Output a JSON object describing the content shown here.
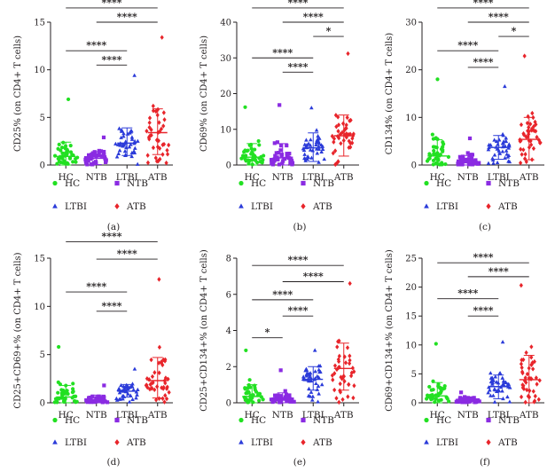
{
  "figure": {
    "panel_count": 6
  },
  "legend": [
    {
      "key": "HC",
      "label": "HC",
      "marker": "circle",
      "color": "#22e022"
    },
    {
      "key": "NTB",
      "label": "NTB",
      "marker": "square",
      "color": "#8a2be2"
    },
    {
      "key": "LTBI",
      "label": "LTBI",
      "marker": "triangle",
      "color": "#2b3bd9"
    },
    {
      "key": "ATB",
      "label": "ATB",
      "marker": "diamond",
      "color": "#e8252b"
    }
  ],
  "chart_data": [
    {
      "type": "scatter",
      "subtype": "dot-plot with mean and SD error bars",
      "panel_label": "(a)",
      "ylabel": "CD25% (on CD4+ T cells)",
      "ylim": [
        0,
        15
      ],
      "yticks": [
        0,
        5,
        10,
        15
      ],
      "categories": [
        "HC",
        "NTB",
        "LTBI",
        "ATB"
      ],
      "summary": [
        {
          "group": "HC",
          "mean": 0.9,
          "sd_low": 0.0,
          "sd_high": 2.4,
          "max": 6.9
        },
        {
          "group": "NTB",
          "mean": 0.7,
          "sd_low": 0.05,
          "sd_high": 1.4,
          "max": 2.9
        },
        {
          "group": "LTBI",
          "mean": 2.3,
          "sd_low": 1.0,
          "sd_high": 3.9,
          "max": 9.4
        },
        {
          "group": "ATB",
          "mean": 3.4,
          "sd_low": 1.1,
          "sd_high": 5.9,
          "max": 13.4
        }
      ],
      "significance": [
        {
          "from": "HC",
          "to": "ATB",
          "label": "****",
          "y": 16.5
        },
        {
          "from": "NTB",
          "to": "ATB",
          "label": "****",
          "y": 15.0
        },
        {
          "from": "HC",
          "to": "LTBI",
          "label": "****",
          "y": 12.0
        },
        {
          "from": "NTB",
          "to": "LTBI",
          "label": "****",
          "y": 10.5
        }
      ]
    },
    {
      "type": "scatter",
      "subtype": "dot-plot with mean and SD error bars",
      "panel_label": "(b)",
      "ylabel": "CD69% (on CD4+ T cells)",
      "ylim": [
        0,
        40
      ],
      "yticks": [
        0,
        10,
        20,
        30,
        40
      ],
      "categories": [
        "HC",
        "NTB",
        "LTBI",
        "ATB"
      ],
      "summary": [
        {
          "group": "HC",
          "mean": 2.2,
          "sd_low": 0.0,
          "sd_high": 6.0,
          "max": 16.2
        },
        {
          "group": "NTB",
          "mean": 2.0,
          "sd_low": 0.0,
          "sd_high": 6.0,
          "max": 16.8
        },
        {
          "group": "LTBI",
          "mean": 4.8,
          "sd_low": 1.0,
          "sd_high": 9.0,
          "max": 16.0
        },
        {
          "group": "ATB",
          "mean": 8.2,
          "sd_low": 2.5,
          "sd_high": 14.0,
          "max": 31.2
        }
      ],
      "significance": [
        {
          "from": "HC",
          "to": "ATB",
          "label": "****",
          "y": 44.0
        },
        {
          "from": "NTB",
          "to": "ATB",
          "label": "****",
          "y": 40.0
        },
        {
          "from": "LTBI",
          "to": "ATB",
          "label": "*",
          "y": 36.0
        },
        {
          "from": "HC",
          "to": "LTBI",
          "label": "****",
          "y": 30.0
        },
        {
          "from": "NTB",
          "to": "LTBI",
          "label": "****",
          "y": 26.0
        }
      ]
    },
    {
      "type": "scatter",
      "subtype": "dot-plot with mean and SD error bars",
      "panel_label": "(c)",
      "ylabel": "CD134% (on CD4+ T cells)",
      "ylim": [
        0,
        30
      ],
      "yticks": [
        0,
        10,
        20,
        30
      ],
      "categories": [
        "HC",
        "NTB",
        "LTBI",
        "ATB"
      ],
      "summary": [
        {
          "group": "HC",
          "mean": 1.9,
          "sd_low": 0.0,
          "sd_high": 5.3,
          "max": 18.0
        },
        {
          "group": "NTB",
          "mean": 0.8,
          "sd_low": 0.0,
          "sd_high": 2.0,
          "max": 5.6
        },
        {
          "group": "LTBI",
          "mean": 3.7,
          "sd_low": 1.2,
          "sd_high": 6.2,
          "max": 16.5
        },
        {
          "group": "ATB",
          "mean": 5.4,
          "sd_low": 1.1,
          "sd_high": 10.0,
          "max": 22.9
        }
      ],
      "significance": [
        {
          "from": "HC",
          "to": "ATB",
          "label": "****",
          "y": 33.0
        },
        {
          "from": "NTB",
          "to": "ATB",
          "label": "****",
          "y": 30.0
        },
        {
          "from": "LTBI",
          "to": "ATB",
          "label": "*",
          "y": 27.0
        },
        {
          "from": "HC",
          "to": "LTBI",
          "label": "****",
          "y": 24.0
        },
        {
          "from": "NTB",
          "to": "LTBI",
          "label": "****",
          "y": 20.5
        }
      ]
    },
    {
      "type": "scatter",
      "subtype": "dot-plot with mean and SD error bars",
      "panel_label": "(d)",
      "ylabel": "CD25+CD69+% (on CD4+ T cells)",
      "ylim": [
        0,
        15
      ],
      "yticks": [
        0,
        5,
        10,
        15
      ],
      "categories": [
        "HC",
        "NTB",
        "LTBI",
        "ATB"
      ],
      "summary": [
        {
          "group": "HC",
          "mean": 0.6,
          "sd_low": 0.0,
          "sd_high": 1.8,
          "max": 5.8
        },
        {
          "group": "NTB",
          "mean": 0.3,
          "sd_low": 0.0,
          "sd_high": 0.8,
          "max": 1.8
        },
        {
          "group": "LTBI",
          "mean": 1.2,
          "sd_low": 0.6,
          "sd_high": 1.9,
          "max": 3.5
        },
        {
          "group": "ATB",
          "mean": 2.3,
          "sd_low": 0.5,
          "sd_high": 4.7,
          "max": 12.8
        }
      ],
      "significance": [
        {
          "from": "HC",
          "to": "ATB",
          "label": "****",
          "y": 16.7
        },
        {
          "from": "NTB",
          "to": "ATB",
          "label": "****",
          "y": 14.9
        },
        {
          "from": "HC",
          "to": "LTBI",
          "label": "****",
          "y": 11.5
        },
        {
          "from": "NTB",
          "to": "LTBI",
          "label": "****",
          "y": 9.5
        }
      ]
    },
    {
      "type": "scatter",
      "subtype": "dot-plot with mean and SD error bars",
      "panel_label": "(e)",
      "ylabel": "CD25+CD134+% (on CD4+ T cells)",
      "ylim": [
        0,
        8
      ],
      "yticks": [
        0,
        2,
        4,
        6,
        8
      ],
      "categories": [
        "HC",
        "NTB",
        "LTBI",
        "ATB"
      ],
      "summary": [
        {
          "group": "HC",
          "mean": 0.35,
          "sd_low": 0.0,
          "sd_high": 1.0,
          "max": 2.9
        },
        {
          "group": "NTB",
          "mean": 0.2,
          "sd_low": 0.0,
          "sd_high": 0.55,
          "max": 1.8
        },
        {
          "group": "LTBI",
          "mean": 1.3,
          "sd_low": 0.7,
          "sd_high": 2.0,
          "max": 2.9
        },
        {
          "group": "ATB",
          "mean": 1.9,
          "sd_low": 0.7,
          "sd_high": 3.3,
          "max": 6.6
        }
      ],
      "significance": [
        {
          "from": "HC",
          "to": "ATB",
          "label": "****",
          "y": 7.6
        },
        {
          "from": "NTB",
          "to": "ATB",
          "label": "****",
          "y": 6.7
        },
        {
          "from": "HC",
          "to": "LTBI",
          "label": "****",
          "y": 5.7
        },
        {
          "from": "NTB",
          "to": "LTBI",
          "label": "****",
          "y": 4.8
        },
        {
          "from": "HC",
          "to": "NTB",
          "label": "*",
          "y": 3.6
        }
      ]
    },
    {
      "type": "scatter",
      "subtype": "dot-plot with mean and SD error bars",
      "panel_label": "(f)",
      "ylabel": "CD69+CD134+% (on CD4+ T cells)",
      "ylim": [
        0,
        25
      ],
      "yticks": [
        0,
        5,
        10,
        15,
        20,
        25
      ],
      "categories": [
        "HC",
        "NTB",
        "LTBI",
        "ATB"
      ],
      "summary": [
        {
          "group": "HC",
          "mean": 1.2,
          "sd_low": 0.0,
          "sd_high": 3.5,
          "max": 10.2
        },
        {
          "group": "NTB",
          "mean": 0.4,
          "sd_low": 0.0,
          "sd_high": 1.0,
          "max": 1.8
        },
        {
          "group": "LTBI",
          "mean": 2.8,
          "sd_low": 0.7,
          "sd_high": 4.8,
          "max": 10.5
        },
        {
          "group": "ATB",
          "mean": 4.0,
          "sd_low": 0.0,
          "sd_high": 8.2,
          "max": 20.3
        }
      ],
      "significance": [
        {
          "from": "HC",
          "to": "ATB",
          "label": "****",
          "y": 24.2
        },
        {
          "from": "NTB",
          "to": "ATB",
          "label": "****",
          "y": 21.8
        },
        {
          "from": "HC",
          "to": "LTBI",
          "label": "****",
          "y": 18.0
        },
        {
          "from": "NTB",
          "to": "LTBI",
          "label": "****",
          "y": 15.0
        }
      ]
    }
  ]
}
